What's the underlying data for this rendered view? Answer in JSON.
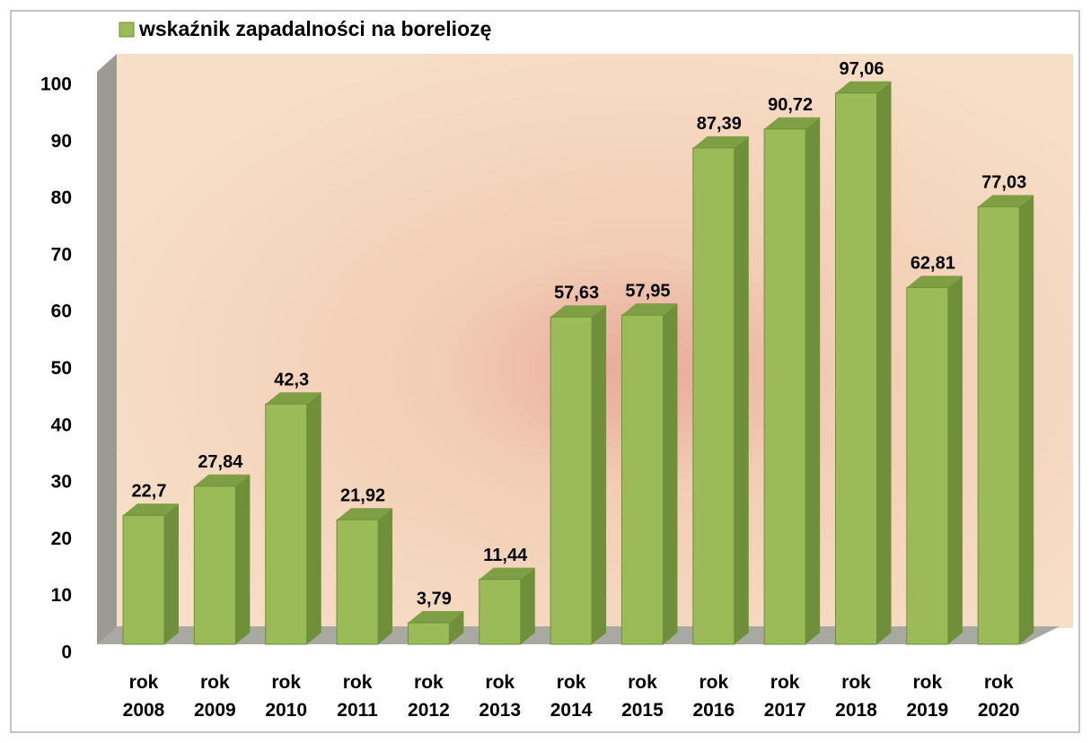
{
  "chart_data": {
    "type": "bar3d",
    "legend": "wskaźnik zapadalności na boreliozę",
    "color": "#9bbb59",
    "categories": [
      "rok 2008",
      "rok 2009",
      "rok 2010",
      "rok 2011",
      "rok 2012",
      "rok 2013",
      "rok 2014",
      "rok 2015",
      "rok 2016",
      "rok 2017",
      "rok 2018",
      "rok 2019",
      "rok 2020"
    ],
    "values": [
      22.7,
      27.84,
      42.3,
      21.92,
      3.79,
      11.44,
      57.63,
      57.95,
      87.39,
      90.72,
      97.06,
      62.81,
      77.03
    ],
    "value_labels": [
      "22,7",
      "27,84",
      "42,3",
      "21,92",
      "3,79",
      "11,44",
      "57,63",
      "57,95",
      "87,39",
      "90,72",
      "97,06",
      "62,81",
      "77,03"
    ],
    "ylim": [
      0,
      100
    ],
    "yticks": [
      0,
      10,
      20,
      30,
      40,
      50,
      60,
      70,
      80,
      90,
      100
    ]
  }
}
